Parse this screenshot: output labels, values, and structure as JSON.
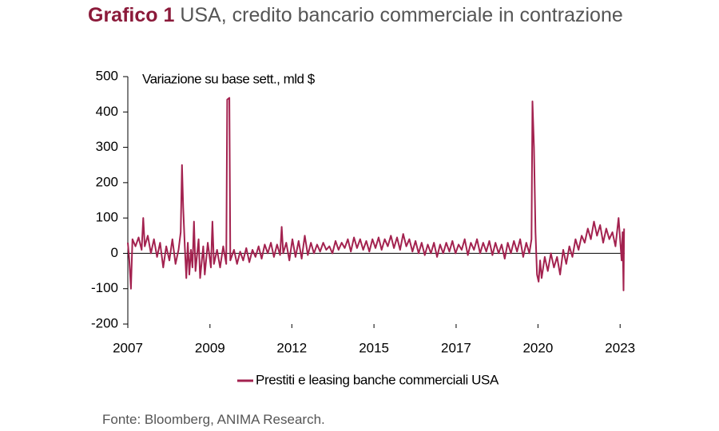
{
  "chart_data": {
    "type": "line",
    "title_label": "Grafico 1",
    "title": "USA, credito bancario commerciale in contrazione",
    "y_label": "Variazione su base sett., mld $",
    "source": "Fonte: Bloomberg, ANIMA Research.",
    "xlim": [
      2007,
      2023.15
    ],
    "xticks": [
      {
        "value": 2007,
        "label": "2007"
      },
      {
        "value": 2009.67,
        "label": "2009"
      },
      {
        "value": 2012.33,
        "label": "2012"
      },
      {
        "value": 2015,
        "label": "2015"
      },
      {
        "value": 2017.67,
        "label": "2017"
      },
      {
        "value": 2020.33,
        "label": "2020"
      },
      {
        "value": 2023,
        "label": "2023"
      }
    ],
    "ylim": [
      -200,
      500
    ],
    "yticks": [
      -200,
      -100,
      0,
      100,
      200,
      300,
      400,
      500
    ],
    "x": [
      2007.0,
      2007.05,
      2007.1,
      2007.15,
      2007.25,
      2007.35,
      2007.45,
      2007.5,
      2007.55,
      2007.65,
      2007.75,
      2007.85,
      2007.95,
      2008.05,
      2008.15,
      2008.25,
      2008.35,
      2008.45,
      2008.55,
      2008.65,
      2008.72,
      2008.76,
      2008.8,
      2008.85,
      2008.9,
      2008.95,
      2009.0,
      2009.05,
      2009.1,
      2009.15,
      2009.2,
      2009.3,
      2009.35,
      2009.45,
      2009.5,
      2009.6,
      2009.7,
      2009.75,
      2009.8,
      2009.9,
      2010.0,
      2010.1,
      2010.2,
      2010.23,
      2010.3,
      2010.33,
      2010.45,
      2010.55,
      2010.65,
      2010.75,
      2010.85,
      2010.95,
      2011.05,
      2011.15,
      2011.25,
      2011.35,
      2011.45,
      2011.55,
      2011.65,
      2011.75,
      2011.85,
      2011.95,
      2012.0,
      2012.05,
      2012.15,
      2012.25,
      2012.35,
      2012.45,
      2012.55,
      2012.65,
      2012.75,
      2012.85,
      2012.95,
      2013.05,
      2013.15,
      2013.25,
      2013.35,
      2013.45,
      2013.55,
      2013.65,
      2013.75,
      2013.85,
      2013.95,
      2014.05,
      2014.15,
      2014.25,
      2014.35,
      2014.45,
      2014.55,
      2014.65,
      2014.75,
      2014.85,
      2014.95,
      2015.05,
      2015.15,
      2015.25,
      2015.35,
      2015.45,
      2015.55,
      2015.65,
      2015.75,
      2015.85,
      2015.95,
      2016.05,
      2016.15,
      2016.25,
      2016.35,
      2016.45,
      2016.55,
      2016.65,
      2016.75,
      2016.85,
      2016.95,
      2017.05,
      2017.15,
      2017.25,
      2017.35,
      2017.45,
      2017.55,
      2017.65,
      2017.75,
      2017.85,
      2017.95,
      2018.05,
      2018.15,
      2018.25,
      2018.35,
      2018.45,
      2018.55,
      2018.65,
      2018.75,
      2018.85,
      2018.95,
      2019.05,
      2019.15,
      2019.25,
      2019.35,
      2019.45,
      2019.55,
      2019.65,
      2019.75,
      2019.85,
      2019.95,
      2020.05,
      2020.12,
      2020.15,
      2020.2,
      2020.25,
      2020.3,
      2020.35,
      2020.4,
      2020.45,
      2020.55,
      2020.65,
      2020.75,
      2020.85,
      2020.95,
      2021.05,
      2021.15,
      2021.25,
      2021.35,
      2021.45,
      2021.55,
      2021.65,
      2021.75,
      2021.85,
      2021.95,
      2022.05,
      2022.15,
      2022.25,
      2022.35,
      2022.45,
      2022.55,
      2022.65,
      2022.75,
      2022.85,
      2022.95,
      2023.0,
      2023.05,
      2023.08,
      2023.11,
      2023.13
    ],
    "series": [
      {
        "name": "Prestiti e leasing banche commerciali USA",
        "color": "#a3224f",
        "values": [
          30,
          -20,
          -100,
          40,
          20,
          45,
          10,
          100,
          20,
          50,
          0,
          40,
          -10,
          30,
          -40,
          20,
          -20,
          40,
          -30,
          10,
          60,
          250,
          130,
          20,
          -70,
          30,
          -60,
          10,
          -40,
          90,
          -50,
          40,
          -70,
          20,
          -60,
          30,
          -40,
          90,
          -30,
          10,
          -40,
          20,
          -30,
          435,
          440,
          -20,
          10,
          -30,
          5,
          -20,
          15,
          -25,
          10,
          -10,
          20,
          -15,
          25,
          0,
          30,
          -10,
          25,
          -5,
          75,
          0,
          30,
          -20,
          40,
          -10,
          35,
          -15,
          50,
          -5,
          30,
          0,
          25,
          5,
          30,
          10,
          20,
          0,
          35,
          10,
          30,
          15,
          40,
          5,
          45,
          15,
          40,
          10,
          35,
          5,
          40,
          15,
          45,
          10,
          40,
          20,
          50,
          15,
          45,
          10,
          55,
          20,
          40,
          5,
          35,
          0,
          30,
          -5,
          25,
          0,
          30,
          -10,
          25,
          0,
          30,
          5,
          35,
          0,
          25,
          10,
          40,
          -5,
          30,
          10,
          40,
          0,
          30,
          5,
          35,
          -5,
          30,
          0,
          25,
          -15,
          30,
          0,
          35,
          5,
          40,
          -10,
          30,
          0,
          40,
          430,
          300,
          60,
          -60,
          -80,
          -20,
          -70,
          -10,
          -50,
          0,
          -40,
          -10,
          -60,
          10,
          -30,
          20,
          -10,
          40,
          10,
          50,
          30,
          70,
          40,
          90,
          50,
          80,
          30,
          70,
          40,
          60,
          20,
          100,
          40,
          -20,
          60,
          -105,
          70
        ]
      }
    ]
  }
}
